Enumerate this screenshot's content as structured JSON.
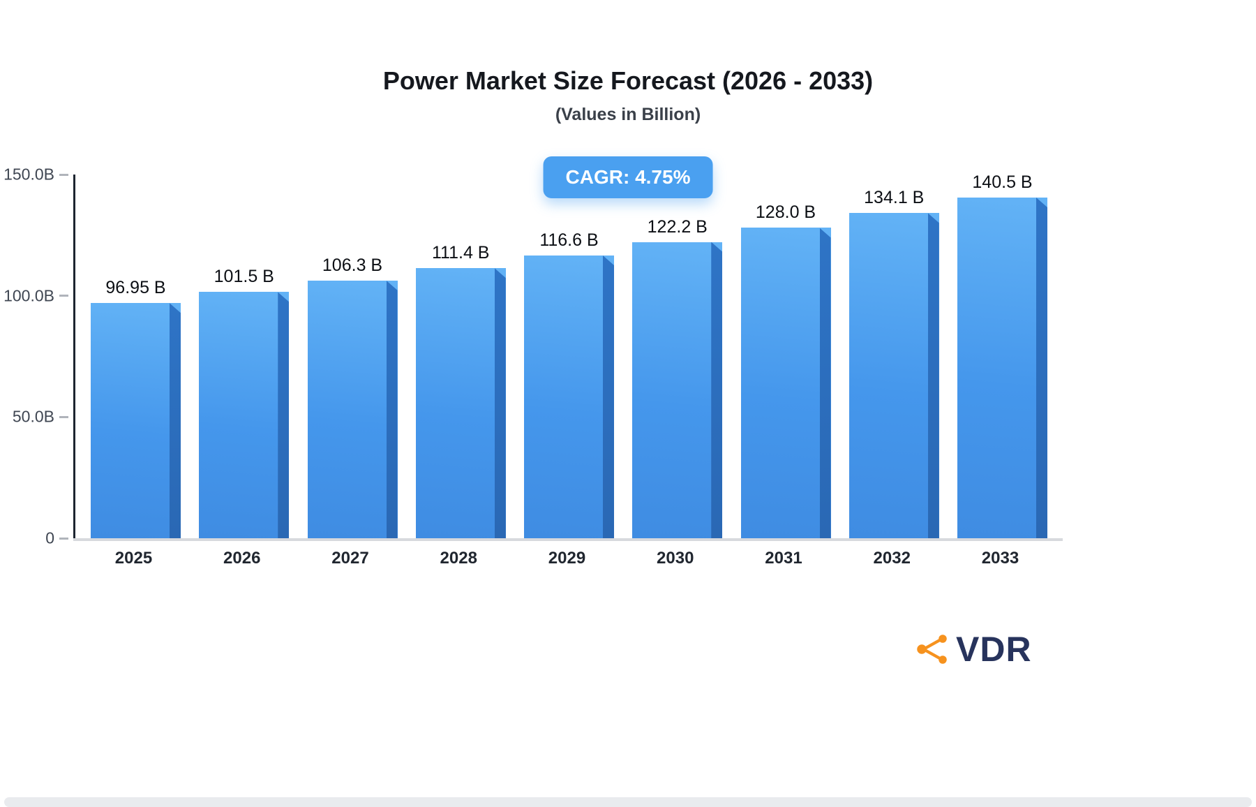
{
  "header": {
    "title": "Power Market Size Forecast (2026 - 2033)",
    "subtitle": "(Values in Billion)"
  },
  "badge": {
    "label": "CAGR: 4.75%",
    "bg_color": "#4aa0f0"
  },
  "chart_data": {
    "type": "bar",
    "title": "Power Market Size Forecast (2026 - 2033)",
    "subtitle": "(Values in Billion)",
    "categories": [
      "2025",
      "2026",
      "2027",
      "2028",
      "2029",
      "2030",
      "2031",
      "2032",
      "2033"
    ],
    "values": [
      96.95,
      101.5,
      106.3,
      111.4,
      116.6,
      122.2,
      128.0,
      134.1,
      140.5
    ],
    "value_labels": [
      "96.95 B",
      "101.5 B",
      "106.3 B",
      "111.4 B",
      "116.6 B",
      "122.2 B",
      "128.0 B",
      "134.1 B",
      "140.5 B"
    ],
    "xlabel": "",
    "ylabel": "",
    "ylim": [
      0,
      150
    ],
    "yticks": [
      {
        "value": 0,
        "label": "0"
      },
      {
        "value": 50,
        "label": "50.0B"
      },
      {
        "value": 100,
        "label": "100.0B"
      },
      {
        "value": 150,
        "label": "150.0B"
      }
    ],
    "grid": false,
    "legend": false,
    "bar_color_top": "#63b3f6",
    "bar_color_bottom": "#3f8ce2",
    "bar_side_color": "#2c6fc0",
    "annotation": "CAGR: 4.75%"
  },
  "logo": {
    "text": "VDR",
    "icon": "share-network-icon",
    "icon_color": "#f6921e",
    "text_color": "#27335c"
  }
}
